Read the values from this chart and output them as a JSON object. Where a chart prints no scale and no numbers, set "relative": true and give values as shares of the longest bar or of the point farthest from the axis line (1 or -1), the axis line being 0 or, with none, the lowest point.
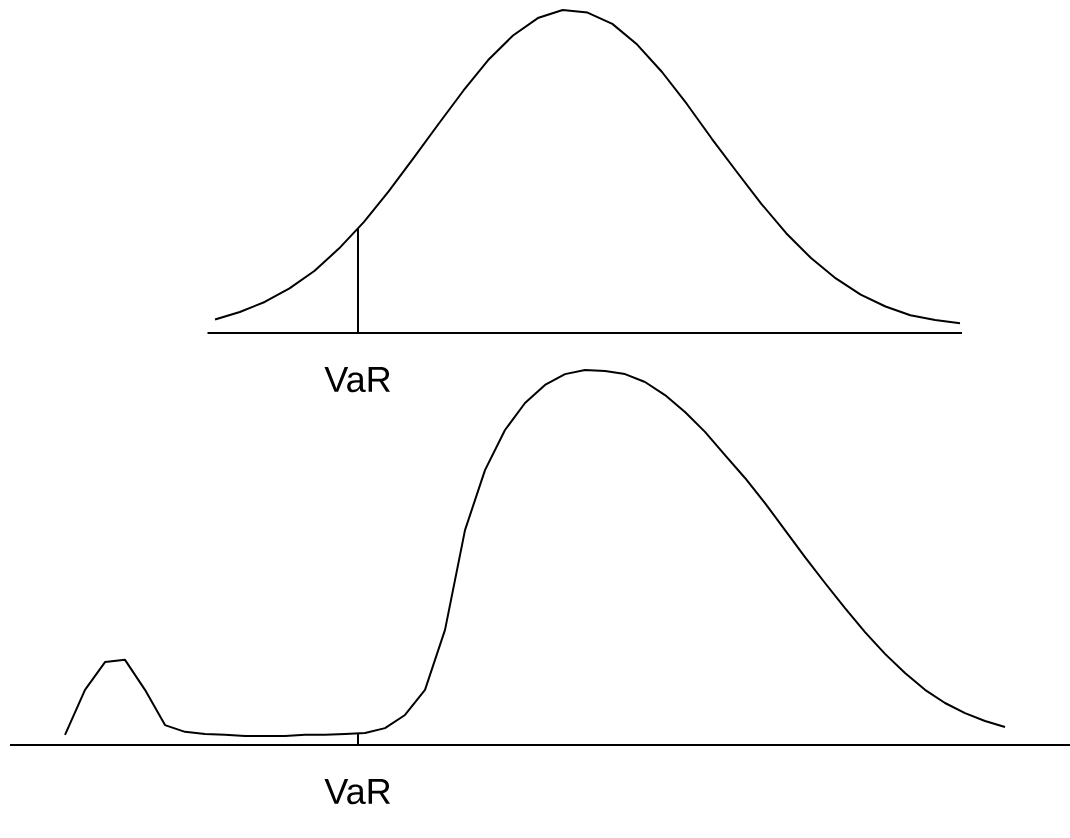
{
  "chart_data": [
    {
      "type": "line",
      "relative": true,
      "color": "#000000",
      "categories": [
        null,
        null,
        null,
        null,
        null,
        null,
        null,
        null,
        null,
        null,
        null,
        null,
        null,
        null,
        null,
        null,
        null,
        null,
        null,
        null,
        null,
        null,
        null,
        null,
        null,
        null,
        null,
        null,
        null,
        null,
        null
      ],
      "values": [
        0.042,
        0.065,
        0.096,
        0.138,
        0.192,
        0.262,
        0.344,
        0.439,
        0.542,
        0.647,
        0.75,
        0.845,
        0.921,
        0.975,
        1.0,
        0.992,
        0.957,
        0.893,
        0.808,
        0.709,
        0.602,
        0.5,
        0.4,
        0.309,
        0.232,
        0.169,
        0.119,
        0.082,
        0.055,
        0.04,
        0.03
      ],
      "annotations": [
        "VaR"
      ]
    },
    {
      "type": "line",
      "relative": true,
      "color": "#000000",
      "categories": [
        null,
        null,
        null,
        null,
        null,
        null,
        null,
        null,
        null,
        null,
        null,
        null,
        null,
        null,
        null,
        null,
        null,
        null,
        null,
        null,
        null,
        null,
        null,
        null,
        null,
        null,
        null,
        null,
        null,
        null,
        null,
        null,
        null,
        null,
        null,
        null,
        null,
        null,
        null,
        null,
        null,
        null,
        null,
        null,
        null,
        null,
        null,
        null
      ],
      "values": [
        0.027,
        0.147,
        0.221,
        0.227,
        0.147,
        0.053,
        0.035,
        0.029,
        0.027,
        0.024,
        0.024,
        0.024,
        0.027,
        0.027,
        0.029,
        0.032,
        0.045,
        0.08,
        0.147,
        0.307,
        0.573,
        0.733,
        0.84,
        0.912,
        0.96,
        0.989,
        1.0,
        0.997,
        0.989,
        0.968,
        0.933,
        0.888,
        0.835,
        0.773,
        0.712,
        0.645,
        0.573,
        0.501,
        0.432,
        0.365,
        0.301,
        0.243,
        0.192,
        0.147,
        0.112,
        0.085,
        0.064,
        0.048
      ],
      "annotations": [
        "VaR"
      ]
    }
  ]
}
